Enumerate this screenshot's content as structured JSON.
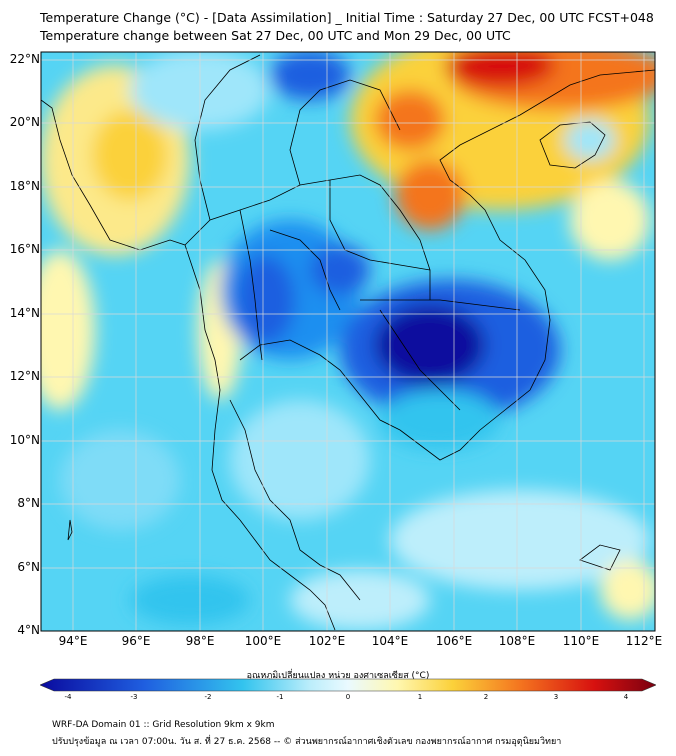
{
  "title": {
    "line1": "Temperature Change (°C) - [Data Assimilation] _ Initial Time : Saturday 27 Dec, 00 UTC FCST+048",
    "line2": "Temperature change between Sat 27 Dec, 00 UTC and Mon 29 Dec, 00 UTC"
  },
  "axes": {
    "lat_labels": [
      "22°N",
      "20°N",
      "18°N",
      "16°N",
      "14°N",
      "12°N",
      "10°N",
      "8°N",
      "6°N",
      "4°N"
    ],
    "lon_labels": [
      "94°E",
      "96°E",
      "98°E",
      "100°E",
      "102°E",
      "104°E",
      "106°E",
      "108°E",
      "110°E",
      "112°E"
    ],
    "lat_range": [
      4,
      22.3
    ],
    "lon_range": [
      93,
      112.3
    ]
  },
  "colorbar": {
    "title": "อุณหภูมิเปลี่ยนแปลง หน่วย องศาเซลเซียส (°C)",
    "ticks": [
      "-4",
      "-3",
      "-2",
      "-1",
      "0",
      "1",
      "2",
      "3",
      "4"
    ],
    "range": [
      -4,
      4
    ],
    "colors": {
      "strong_cool": "#0a0a9e",
      "cool": "#1f5fe0",
      "light_cool": "#33c4ee",
      "pale_cool": "#bdeefb",
      "neutral": "#eafaff",
      "pale_warm": "#fff7b0",
      "warm": "#fbd13a",
      "hot": "#f4741f",
      "very_hot": "#d7110f",
      "extreme": "#7a0010"
    }
  },
  "footer": {
    "line1": "WRF-DA Domain 01 :: Grid Resolution 9km x 9km",
    "line2": "ปรับปรุงข้อมูล ณ เวลา 07:00น. วัน ส. ที่ 27 ธ.ค. 2568 -- © ส่วนพยากรณ์อากาศเชิงตัวเลข กองพยากรณ์อากาศ กรมอุตุนิยมวิทยา"
  }
}
